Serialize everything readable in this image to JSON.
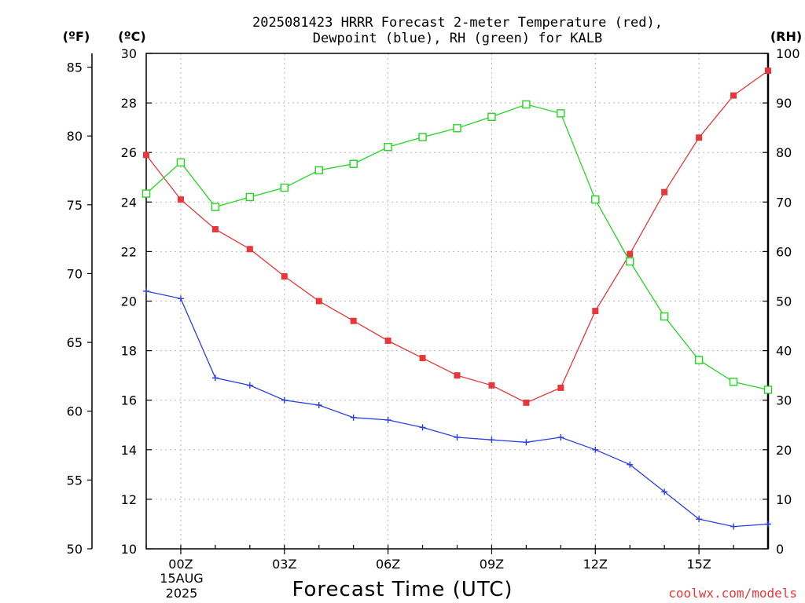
{
  "title_line1": "2025081423 HRRR Forecast 2-meter Temperature (red),",
  "title_line2": "Dewpoint (blue), RH (green) for KALB",
  "unit_f": "(ºF)",
  "unit_c": "(ºC)",
  "unit_rh": "(RH)",
  "xlabel": "Forecast Time (UTC)",
  "credit": "coolwx.com/models",
  "date_line1": "15AUG",
  "date_line2": "2025",
  "colors": {
    "temperature": "#e8373a",
    "dewpoint": "#2a3fe0",
    "rh": "#22d622"
  },
  "chart_data": {
    "type": "line",
    "x_start_hour": -1,
    "x_end_hour": 17,
    "x": [
      -1,
      0,
      1,
      2,
      3,
      4,
      5,
      6,
      7,
      8,
      9,
      10,
      11,
      12,
      13,
      14,
      15,
      16,
      17
    ],
    "x_tick_labels": [
      "00Z",
      "03Z",
      "06Z",
      "09Z",
      "12Z",
      "15Z"
    ],
    "x_tick_hours": [
      0,
      3,
      6,
      9,
      12,
      15
    ],
    "left_inner_axis": {
      "label": "(ºC)",
      "range": [
        10,
        30
      ],
      "ticks": [
        10,
        12,
        14,
        16,
        18,
        20,
        22,
        24,
        26,
        28,
        30
      ]
    },
    "left_outer_axis": {
      "label": "(ºF)",
      "range": [
        50,
        86
      ],
      "ticks": [
        50,
        55,
        60,
        65,
        70,
        75,
        80,
        85
      ]
    },
    "right_axis": {
      "label": "(RH)",
      "range": [
        0,
        100
      ],
      "ticks": [
        0,
        10,
        20,
        30,
        40,
        50,
        60,
        70,
        80,
        90,
        100
      ]
    },
    "grid": true,
    "series": [
      {
        "name": "Temperature",
        "axis": "C",
        "marker": "filled-square",
        "values": [
          25.9,
          24.1,
          22.9,
          22.1,
          21.0,
          20.0,
          19.2,
          18.4,
          17.7,
          17.0,
          16.6,
          15.9,
          16.5,
          19.6,
          21.9,
          24.4,
          26.6,
          28.3,
          29.3
        ]
      },
      {
        "name": "Dewpoint",
        "axis": "C",
        "marker": "plus",
        "values": [
          20.4,
          20.1,
          16.9,
          16.6,
          16.0,
          15.8,
          15.3,
          15.2,
          14.9,
          14.5,
          14.4,
          14.3,
          14.5,
          14.0,
          13.4,
          12.3,
          11.2,
          10.9,
          11.0
        ]
      },
      {
        "name": "RH",
        "axis": "RH",
        "marker": "open-square",
        "values": [
          71.7,
          78.0,
          69.0,
          71.0,
          72.9,
          76.4,
          77.7,
          81.1,
          83.1,
          84.9,
          87.2,
          89.7,
          87.9,
          70.5,
          58.0,
          46.9,
          38.1,
          33.7,
          32.1
        ]
      }
    ]
  }
}
